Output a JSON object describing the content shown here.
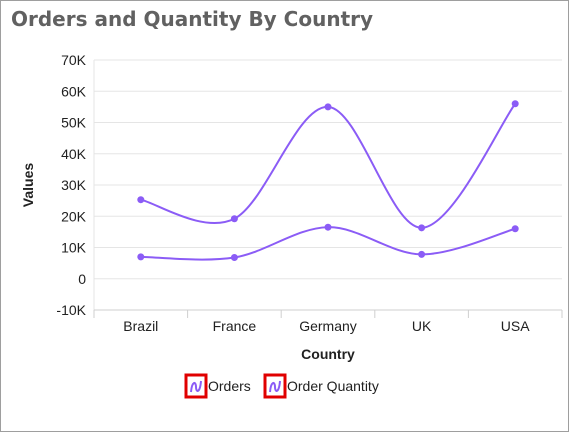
{
  "panel": {
    "title": "Orders and Quantity By Country"
  },
  "colors": {
    "title": "#616161",
    "series": "#8b5cf6",
    "axis_text": "#212121",
    "grid": "#e5e5e5",
    "legend_highlight": "#e00000"
  },
  "chart_data": {
    "type": "line",
    "interpolation": "spline",
    "title": "Orders and Quantity By Country",
    "xlabel": "Country",
    "ylabel": "Values",
    "categories": [
      "Brazil",
      "France",
      "Germany",
      "UK",
      "USA"
    ],
    "ylim": [
      -10000,
      70000
    ],
    "yticks": [
      "-10K",
      "0",
      "10K",
      "20K",
      "30K",
      "40K",
      "50K",
      "60K",
      "70K"
    ],
    "grid": true,
    "legend_position": "bottom",
    "series": [
      {
        "name": "Orders",
        "values": [
          7000,
          6800,
          16500,
          7800,
          16000
        ]
      },
      {
        "name": "Order Quantity",
        "values": [
          25300,
          19200,
          55000,
          16300,
          56000
        ]
      }
    ]
  }
}
